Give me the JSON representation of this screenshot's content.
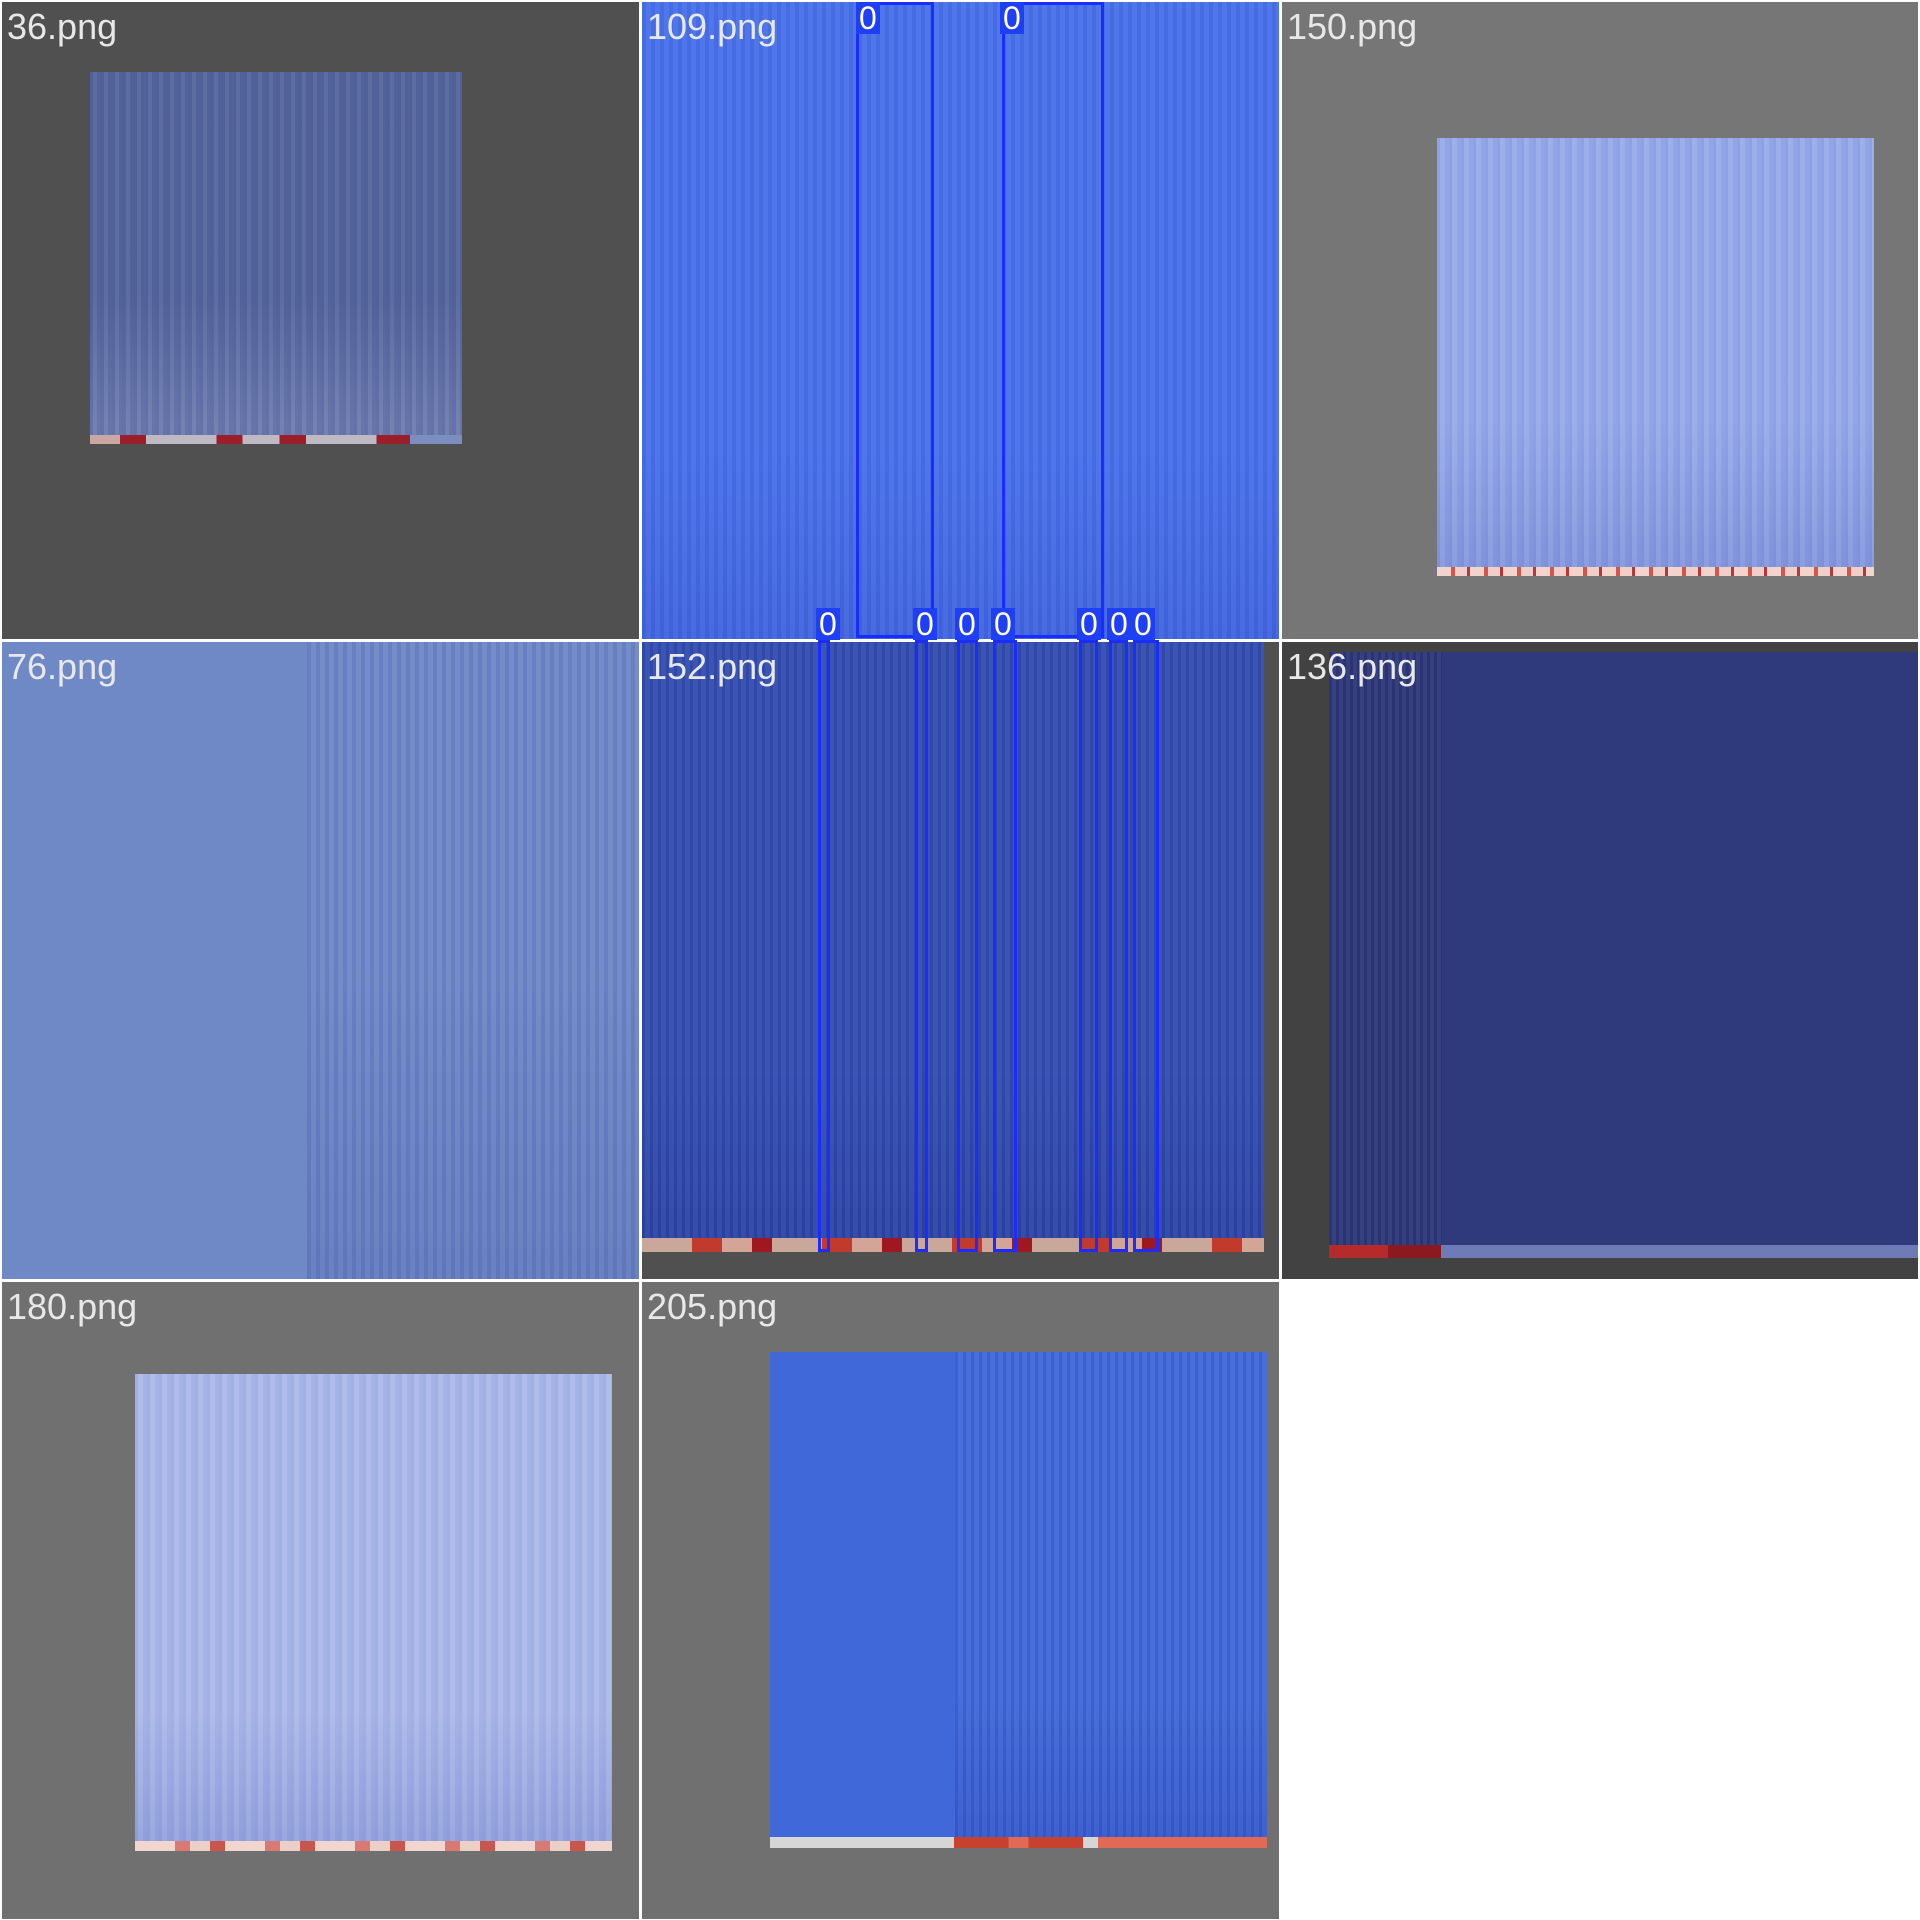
{
  "tiles": [
    {
      "label": "36.png",
      "bg": "#505050",
      "spec": "#56679e",
      "strip": [
        "#c9a8a4",
        "#9a1f2a",
        "#bfb9c4",
        "#7a8fbf"
      ]
    },
    {
      "label": "109.png",
      "bg": "#4a72ea",
      "spec": "#4a72ea",
      "strip": []
    },
    {
      "label": "150.png",
      "bg": "#767676",
      "spec": "#97aae9",
      "strip": [
        "#f2d4cc",
        "#d0574a",
        "#f0cfc8",
        "#b33a3a"
      ]
    },
    {
      "label": "76.png",
      "bg": "#6f88c6",
      "spec": "#6f88c6",
      "strip": []
    },
    {
      "label": "152.png",
      "bg": "#3550b2",
      "spec": "#3550b2",
      "strip": [
        "#c9a79a",
        "#c13a2c",
        "#d2a596",
        "#a0181f"
      ]
    },
    {
      "label": "136.png",
      "bg": "#424242",
      "spec": "#2f3a7c",
      "strip": [
        "#b52a2a",
        "#8a1a1f",
        "#6d7bb6",
        "#6d7bb6"
      ]
    },
    {
      "label": "180.png",
      "bg": "#707070",
      "spec": "#abb9e9",
      "strip": [
        "#f0d6cf",
        "#d97a72",
        "#ecd0c8",
        "#c9564c"
      ]
    },
    {
      "label": "205.png",
      "bg": "#707070",
      "spec": "#4068d8",
      "strip": [
        "#d6d6d6",
        "#d6d6d6",
        "#c8402e",
        "#e06a55"
      ]
    }
  ],
  "detections": [
    {
      "label": "0"
    },
    {
      "label": "0"
    },
    {
      "label": "0"
    },
    {
      "label": "0"
    },
    {
      "label": "0"
    },
    {
      "label": "0"
    },
    {
      "label": "0"
    },
    {
      "label": "0"
    },
    {
      "label": "0"
    }
  ]
}
